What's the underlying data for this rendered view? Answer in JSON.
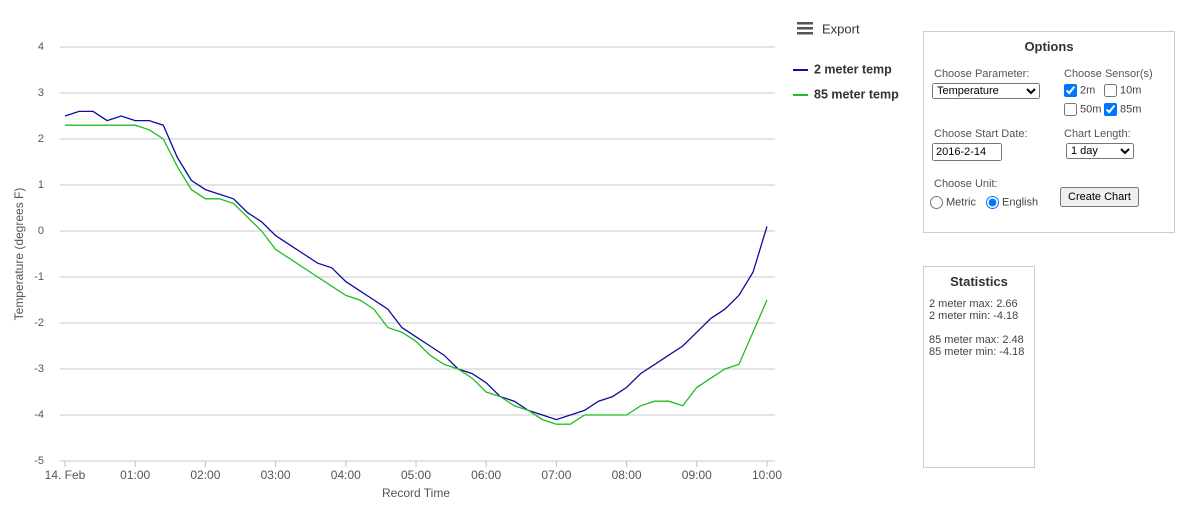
{
  "chart_data": {
    "type": "line",
    "y_label": "Temperature (degrees F)",
    "x_label": "Record Time",
    "x": [
      0,
      0.2,
      0.4,
      0.6,
      0.8,
      1,
      1.2,
      1.4,
      1.6,
      1.8,
      2,
      2.2,
      2.4,
      2.6,
      2.8,
      3,
      3.2,
      3.4,
      3.6,
      3.8,
      4,
      4.2,
      4.4,
      4.6,
      4.8,
      5,
      5.2,
      5.4,
      5.6,
      5.8,
      6,
      6.2,
      6.4,
      6.6,
      6.8,
      7,
      7.2,
      7.4,
      7.6,
      7.8,
      8,
      8.2,
      8.4,
      8.6,
      8.8,
      9,
      9.2,
      9.4,
      9.6,
      9.8,
      10
    ],
    "series": [
      {
        "name": "2 meter temp",
        "color": "#0d0d9e",
        "values": [
          2.5,
          2.6,
          2.6,
          2.4,
          2.5,
          2.4,
          2.4,
          2.3,
          1.6,
          1.1,
          0.9,
          0.8,
          0.7,
          0.4,
          0.2,
          -0.1,
          -0.3,
          -0.5,
          -0.7,
          -0.8,
          -1.1,
          -1.3,
          -1.5,
          -1.7,
          -2.1,
          -2.3,
          -2.5,
          -2.7,
          -3.0,
          -3.1,
          -3.3,
          -3.6,
          -3.7,
          -3.9,
          -4.0,
          -4.1,
          -4.0,
          -3.9,
          -3.7,
          -3.6,
          -3.4,
          -3.1,
          -2.9,
          -2.7,
          -2.5,
          -2.2,
          -1.9,
          -1.7,
          -1.4,
          -0.9,
          0.1
        ]
      },
      {
        "name": "85 meter temp",
        "color": "#1fbf1f",
        "values": [
          2.3,
          2.3,
          2.3,
          2.3,
          2.3,
          2.3,
          2.2,
          2.0,
          1.4,
          0.9,
          0.7,
          0.7,
          0.6,
          0.3,
          0.0,
          -0.4,
          -0.6,
          -0.8,
          -1.0,
          -1.2,
          -1.4,
          -1.5,
          -1.7,
          -2.1,
          -2.2,
          -2.4,
          -2.7,
          -2.9,
          -3.0,
          -3.2,
          -3.5,
          -3.6,
          -3.8,
          -3.9,
          -4.1,
          -4.2,
          -4.2,
          -4.0,
          -4.0,
          -4.0,
          -4.0,
          -3.8,
          -3.7,
          -3.7,
          -3.8,
          -3.4,
          -3.2,
          -3.0,
          -2.9,
          -2.2,
          -1.5
        ]
      }
    ],
    "xlim": [
      0,
      10
    ],
    "xticks": [
      {
        "value": 0,
        "label": "14. Feb"
      },
      {
        "value": 1,
        "label": "01:00"
      },
      {
        "value": 2,
        "label": "02:00"
      },
      {
        "value": 3,
        "label": "03:00"
      },
      {
        "value": 4,
        "label": "04:00"
      },
      {
        "value": 5,
        "label": "05:00"
      },
      {
        "value": 6,
        "label": "06:00"
      },
      {
        "value": 7,
        "label": "07:00"
      },
      {
        "value": 8,
        "label": "08:00"
      },
      {
        "value": 9,
        "label": "09:00"
      },
      {
        "value": 10,
        "label": "10:00"
      }
    ],
    "ylim": [
      -5,
      4
    ],
    "yticks": [
      -5,
      -4,
      -3,
      -2,
      -1,
      0,
      1,
      2,
      3,
      4
    ],
    "grid": true,
    "legend": "right"
  },
  "export": {
    "label": "Export"
  },
  "options": {
    "title": "Options",
    "parameter_label": "Choose Parameter:",
    "parameter": "Temperature",
    "sensor_label": "Choose Sensor(s)",
    "sensors": [
      "2m",
      "10m",
      "50m",
      "85m"
    ],
    "start_label": "Choose Start Date:",
    "start": "2016-2-14",
    "length_label": "Chart Length:",
    "length": "1 day",
    "unit_label": "Choose Unit:",
    "units": [
      "Metric",
      "English"
    ],
    "button": "Create Chart"
  },
  "statistics": {
    "title": "Statistics",
    "lines": [
      "2 meter max: 2.66",
      "2 meter min: -4.18",
      "85 meter max: 2.48",
      "85 meter min: -4.18"
    ]
  }
}
